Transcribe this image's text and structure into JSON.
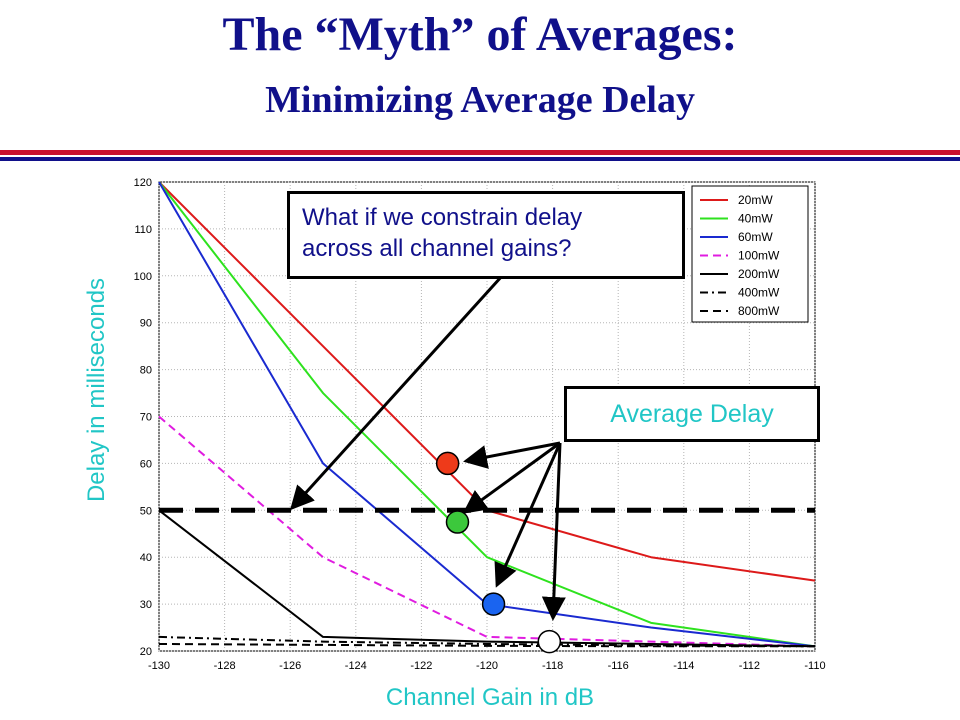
{
  "slide": {
    "title": "The “Myth” of Averages:",
    "subtitle": "Minimizing Average Delay",
    "y_axis_label": "Delay in milliseconds",
    "x_axis_label": "Channel Gain in dB",
    "callout_line1": "What if we constrain delay",
    "callout_line2": "across all channel gains?",
    "average_box": "Average Delay",
    "colors": {
      "title": "#10108a",
      "rule_red": "#c8102e",
      "rule_blue": "#10108a",
      "label": "#21c6c6"
    }
  },
  "chart_data": {
    "type": "line",
    "xlim": [
      -130,
      -110
    ],
    "ylim": [
      20,
      120
    ],
    "x_ticks": [
      -130,
      -128,
      -126,
      -124,
      -122,
      -120,
      -118,
      -116,
      -114,
      -112,
      -110
    ],
    "y_ticks": [
      20,
      30,
      40,
      50,
      60,
      70,
      80,
      90,
      100,
      110,
      120
    ],
    "legend_position": "top-right",
    "series": [
      {
        "name": "20mW",
        "color": "#dd1a1a",
        "dash": "solid",
        "x": [
          -130,
          -125,
          -120,
          -115,
          -110
        ],
        "y": [
          120,
          85,
          50,
          40,
          35
        ]
      },
      {
        "name": "40mW",
        "color": "#2ee21e",
        "dash": "solid",
        "x": [
          -130,
          -125,
          -120,
          -115,
          -110
        ],
        "y": [
          120,
          75,
          40,
          26,
          21
        ]
      },
      {
        "name": "60mW",
        "color": "#1a2ad0",
        "dash": "solid",
        "x": [
          -130,
          -125,
          -120,
          -115,
          -110
        ],
        "y": [
          120,
          60,
          30,
          25,
          21
        ]
      },
      {
        "name": "100mW",
        "color": "#e01ce0",
        "dash": "dashed",
        "x": [
          -130,
          -125,
          -120,
          -115,
          -110
        ],
        "y": [
          70,
          40,
          23,
          22,
          21
        ]
      },
      {
        "name": "200mW",
        "color": "#000000",
        "dash": "solid",
        "x": [
          -130,
          -125,
          -120,
          -115,
          -110
        ],
        "y": [
          50,
          23,
          22,
          21.5,
          21
        ]
      },
      {
        "name": "400mW",
        "color": "#000000",
        "dash": "dashdot",
        "x": [
          -130,
          -125,
          -120,
          -115,
          -110
        ],
        "y": [
          23,
          22,
          21.5,
          21.2,
          21
        ]
      },
      {
        "name": "800mW",
        "color": "#000000",
        "dash": "dashed",
        "x": [
          -130,
          -125,
          -120,
          -115,
          -110
        ],
        "y": [
          21.5,
          21.3,
          21.1,
          21,
          21
        ]
      }
    ],
    "constraint_line": {
      "y": 50
    },
    "average_markers": [
      {
        "x": -121.2,
        "y": 60,
        "color": "#ee3a1a"
      },
      {
        "x": -120.9,
        "y": 47.5,
        "color": "#3cc83c"
      },
      {
        "x": -119.8,
        "y": 30,
        "color": "#1a64f0"
      },
      {
        "x": -118.1,
        "y": 22,
        "color": "#ffffff"
      }
    ]
  }
}
